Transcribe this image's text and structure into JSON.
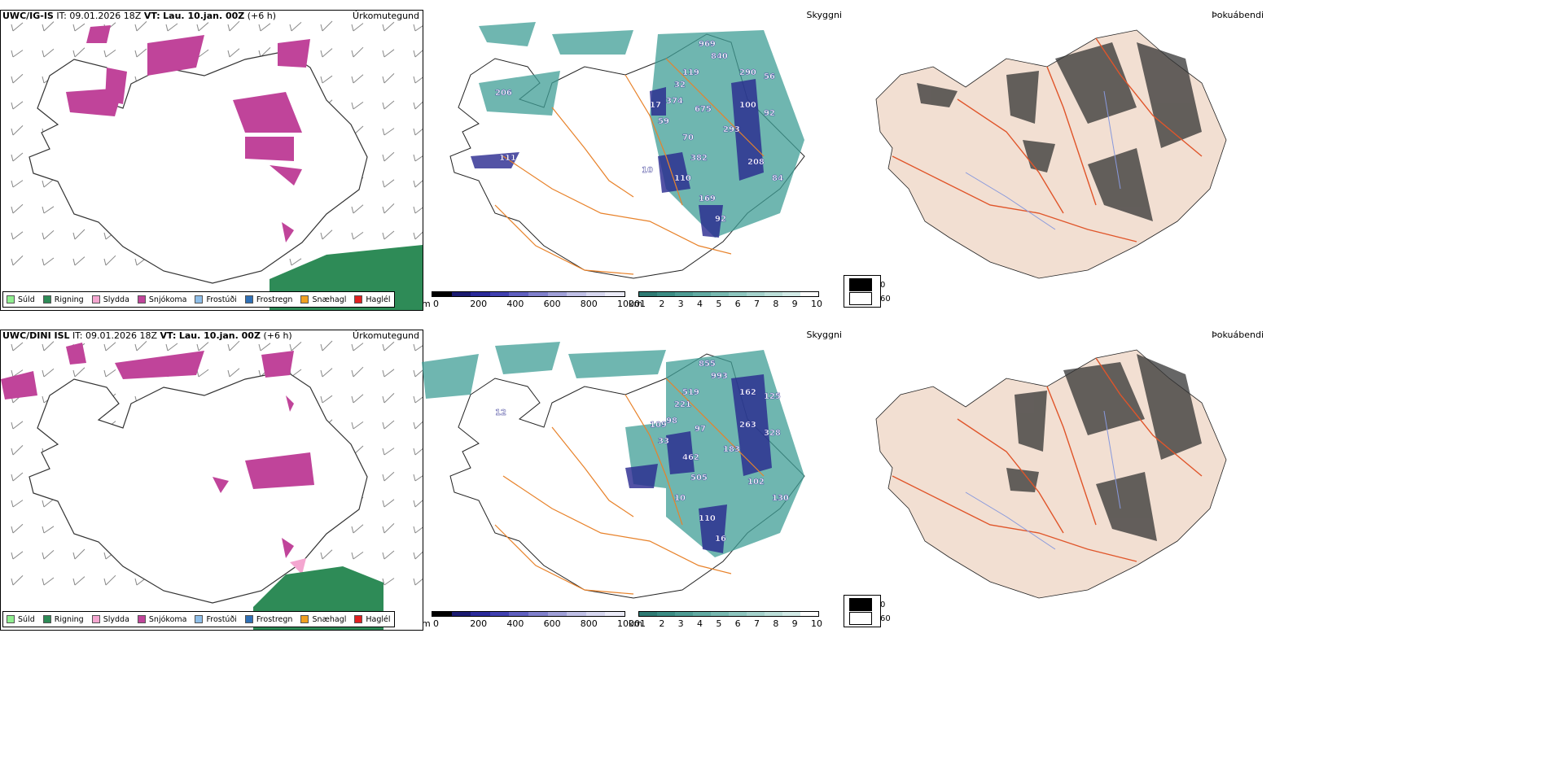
{
  "rows": [
    {
      "model": "UWC/IG-IS",
      "it_label": "IT:",
      "it_value": "09.01.2026 18Z",
      "vt_label": "VT:",
      "vt_value": "Lau. 10.jan. 00Z",
      "lead": "(+6 h)",
      "precip_title": "Úrkomutegund",
      "vis_title": "Skyggni",
      "fog_title": "Þokuábendi",
      "cloud_labels": [
        "969",
        "840",
        "119",
        "290",
        "56",
        "32",
        "374",
        "675",
        "100",
        "92",
        "59",
        "70",
        "293",
        "382",
        "208",
        "84",
        "110",
        "169",
        "17",
        "92",
        "206",
        "111",
        "10"
      ]
    },
    {
      "model": "UWC/DINI ISL",
      "it_label": "IT:",
      "it_value": "09.01.2026 18Z",
      "vt_label": "VT:",
      "vt_value": "Lau. 10.jan. 00Z",
      "lead": "(+6 h)",
      "precip_title": "Úrkomutegund",
      "vis_title": "Skyggni",
      "fog_title": "Þokuábendi",
      "cloud_labels": [
        "855",
        "993",
        "519",
        "162",
        "125",
        "221",
        "98",
        "97",
        "263",
        "328",
        "33",
        "462",
        "183",
        "505",
        "102",
        "130",
        "10",
        "110",
        "109",
        "16",
        "12"
      ]
    }
  ],
  "precip_legend": [
    {
      "label": "Súld",
      "color": "#90ee90"
    },
    {
      "label": "Rigning",
      "color": "#2e8b57"
    },
    {
      "label": "Slydda",
      "color": "#f4a6d0"
    },
    {
      "label": "Snjókoma",
      "color": "#c0449a"
    },
    {
      "label": "Frostúði",
      "color": "#8ebee8"
    },
    {
      "label": "Frostregn",
      "color": "#2f6fb5"
    },
    {
      "label": "Snæhagl",
      "color": "#f0a020"
    },
    {
      "label": "Haglél",
      "color": "#e02020"
    }
  ],
  "ceiling_scale": {
    "unit": "m",
    "ticks": [
      "0",
      "200",
      "400",
      "600",
      "800",
      "1000"
    ]
  },
  "vis_scale": {
    "unit": "km",
    "ticks": [
      "1",
      "2",
      "3",
      "4",
      "5",
      "6",
      "7",
      "8",
      "9",
      "10"
    ]
  },
  "fog_scale": {
    "ticks": [
      "0",
      "60"
    ]
  },
  "colors": {
    "snow": "#c0449a",
    "rain": "#2e8b57",
    "teal": "#3f9e96",
    "navy": "#28288f",
    "route": "#e8822a",
    "land": "#f2dfd2",
    "road": "#e0552a",
    "river": "#8899dd"
  }
}
